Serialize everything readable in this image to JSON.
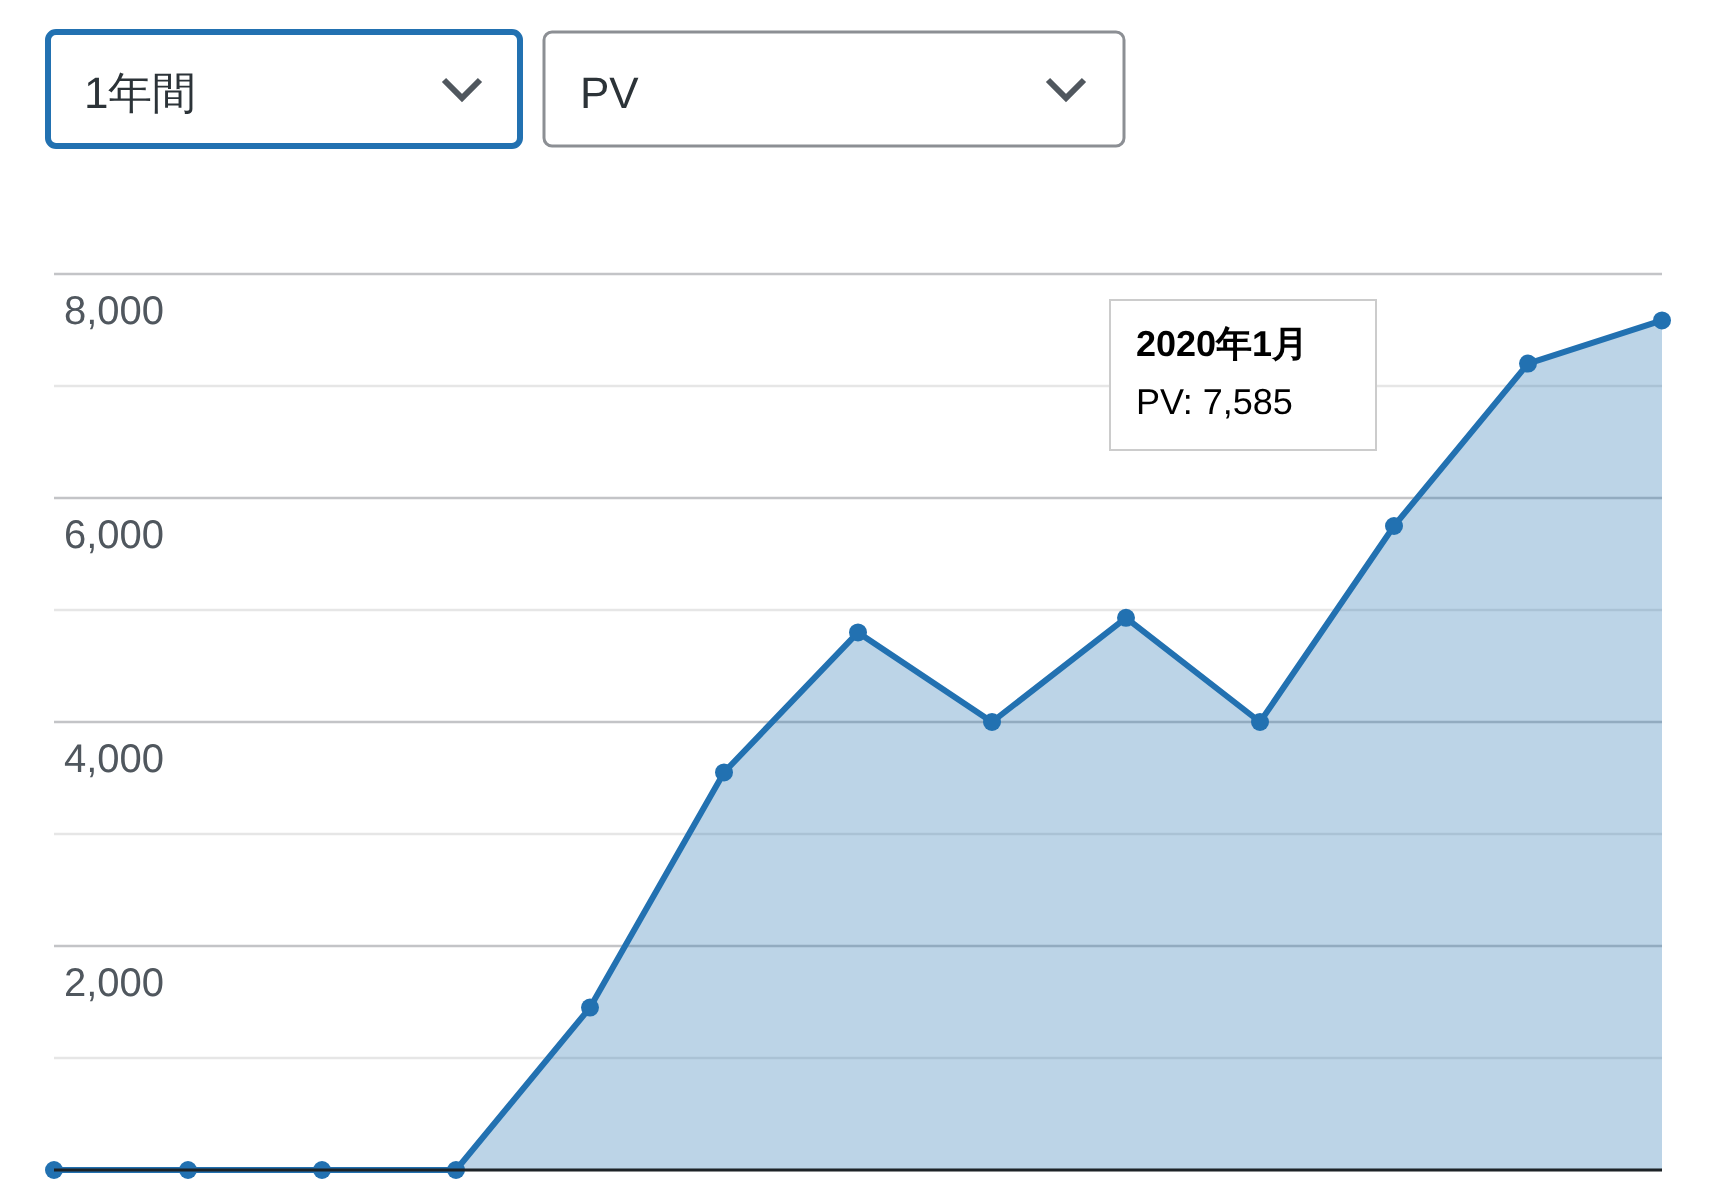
{
  "chart_data": {
    "type": "area",
    "categories": [
      null,
      null,
      null,
      null,
      null,
      null,
      null,
      null,
      null,
      null,
      null,
      null,
      null
    ],
    "series": [
      {
        "color": "#2271b1",
        "values": [
          0,
          0,
          0,
          0,
          1450,
          3550,
          4800,
          4000,
          4930,
          4000,
          5750,
          7200,
          7585
        ]
      }
    ],
    "ylim": [
      0,
      8000
    ],
    "yticks": [
      {
        "value": 0,
        "label": null
      },
      {
        "value": 1000,
        "label": null
      },
      {
        "value": 2000,
        "label": "2,000"
      },
      {
        "value": 3000,
        "label": null
      },
      {
        "value": 4000,
        "label": "4,000"
      },
      {
        "value": 5000,
        "label": null
      },
      {
        "value": 6000,
        "label": "6,000"
      },
      {
        "value": 7000,
        "label": null
      },
      {
        "value": 8000,
        "label": "8,000"
      }
    ],
    "grid": "y",
    "marker": "circle",
    "tick_labels": "y",
    "annotations": [
      "1年間",
      "PV",
      "2020年1月\nPV: 7,585"
    ]
  }
}
